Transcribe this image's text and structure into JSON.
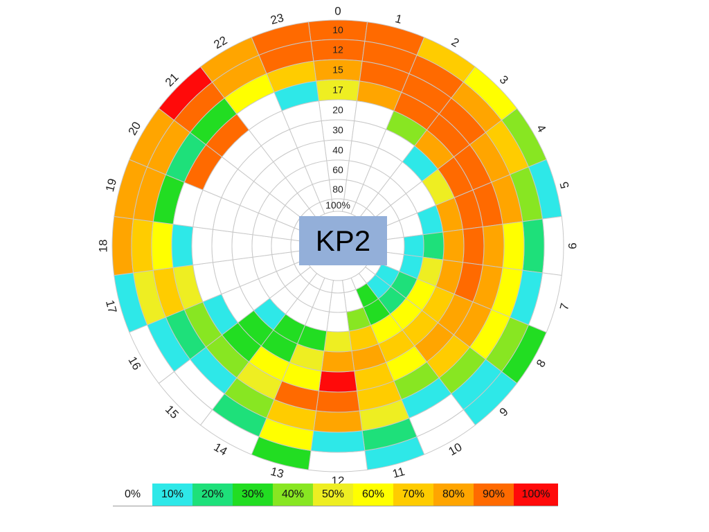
{
  "chart_data": {
    "type": "heatmap",
    "title": "KP2",
    "hours": [
      "0",
      "1",
      "2",
      "3",
      "4",
      "5",
      "6",
      "7",
      "8",
      "9",
      "10",
      "11",
      "12",
      "13",
      "14",
      "15",
      "16",
      "17",
      "18",
      "19",
      "20",
      "21",
      "22",
      "23"
    ],
    "ring_labels": [
      "10",
      "12",
      "15",
      "17",
      "20",
      "30",
      "40",
      "60",
      "80",
      "100%"
    ],
    "legend": [
      "0%",
      "10%",
      "20%",
      "30%",
      "40%",
      "50%",
      "60%",
      "70%",
      "80%",
      "90%",
      "100%"
    ],
    "colors": [
      "#ffffff",
      "#2ee8e8",
      "#1ee07a",
      "#22dd22",
      "#88e622",
      "#eeee22",
      "#ffff00",
      "#ffcc00",
      "#ffa500",
      "#ff6a00",
      "#ff0a0a"
    ],
    "values_by_hour": [
      [
        85,
        85,
        80,
        45,
        0,
        0,
        0,
        0,
        0,
        0
      ],
      [
        90,
        90,
        90,
        80,
        0,
        0,
        0,
        0,
        0,
        0
      ],
      [
        70,
        85,
        90,
        90,
        40,
        0,
        0,
        0,
        0,
        0
      ],
      [
        60,
        80,
        90,
        90,
        80,
        10,
        0,
        0,
        0,
        0
      ],
      [
        40,
        70,
        80,
        90,
        90,
        50,
        0,
        0,
        0,
        0
      ],
      [
        10,
        40,
        80,
        90,
        90,
        80,
        5,
        0,
        0,
        0
      ],
      [
        0,
        20,
        60,
        80,
        90,
        80,
        20,
        5,
        0,
        0
      ],
      [
        0,
        10,
        60,
        80,
        90,
        80,
        45,
        10,
        0,
        0
      ],
      [
        30,
        40,
        60,
        80,
        80,
        70,
        60,
        20,
        5,
        0
      ],
      [
        10,
        10,
        40,
        70,
        80,
        70,
        60,
        20,
        5,
        0
      ],
      [
        0,
        0,
        10,
        40,
        60,
        70,
        60,
        30,
        30,
        0
      ],
      [
        5,
        20,
        50,
        70,
        70,
        80,
        70,
        40,
        0,
        0
      ],
      [
        0,
        5,
        80,
        90,
        100,
        80,
        50,
        0,
        0,
        0
      ],
      [
        30,
        60,
        70,
        90,
        60,
        50,
        30,
        0,
        0,
        0
      ],
      [
        0,
        20,
        40,
        50,
        60,
        30,
        30,
        0,
        0,
        0
      ],
      [
        0,
        0,
        10,
        40,
        30,
        30,
        5,
        0,
        0,
        0
      ],
      [
        0,
        10,
        20,
        40,
        5,
        0,
        0,
        0,
        0,
        0
      ],
      [
        10,
        45,
        70,
        45,
        0,
        0,
        0,
        0,
        0,
        0
      ],
      [
        80,
        70,
        60,
        5,
        0,
        0,
        0,
        0,
        0,
        0
      ],
      [
        80,
        80,
        30,
        0,
        0,
        0,
        0,
        0,
        0,
        0
      ],
      [
        80,
        80,
        20,
        90,
        0,
        0,
        0,
        0,
        0,
        0
      ],
      [
        95,
        90,
        30,
        90,
        0,
        0,
        0,
        0,
        0,
        0
      ],
      [
        80,
        80,
        60,
        0,
        0,
        0,
        0,
        0,
        0,
        0
      ],
      [
        85,
        85,
        70,
        10,
        0,
        0,
        0,
        0,
        0,
        0
      ]
    ]
  }
}
